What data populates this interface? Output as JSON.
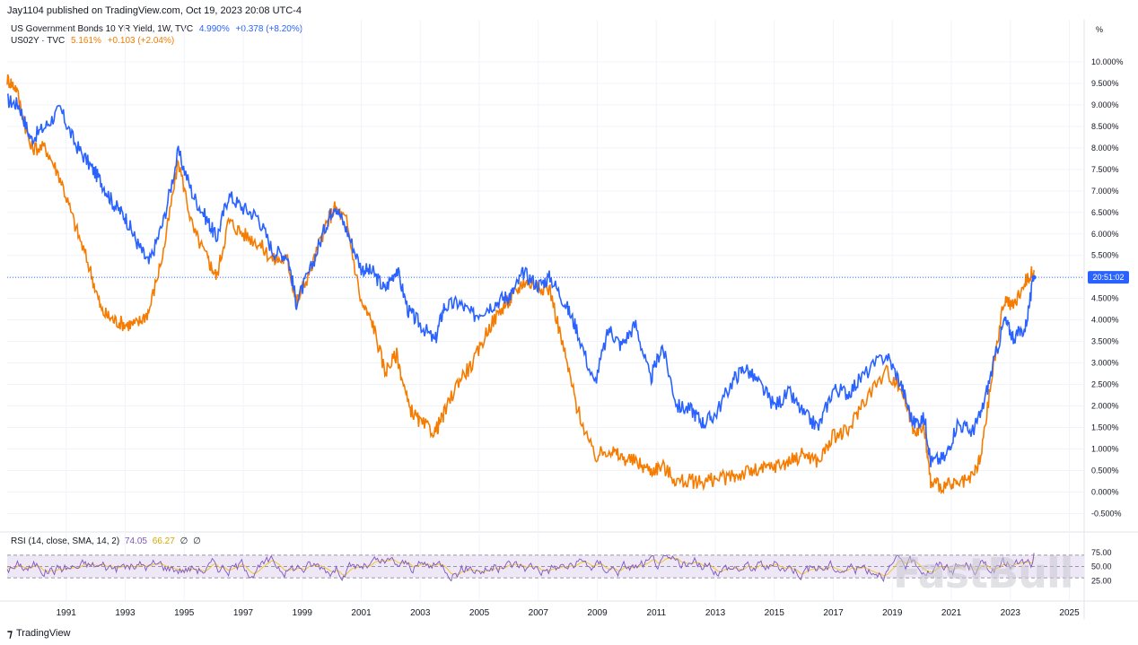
{
  "publisher": "Jay1104 published on TradingView.com, Oct 19, 2023 20:08 UTC-4",
  "unit": "%",
  "legend": [
    {
      "name": "US Government Bonds 10 YR Yield, 1W, TVC",
      "value": "4.990%",
      "change": "+0.378 (+8.20%)",
      "color": "#2962ff"
    },
    {
      "name": "US02Y · TVC",
      "value": "5.161%",
      "change": "+0.103 (+2.04%)",
      "color": "#f57c00"
    }
  ],
  "rsi_legend": {
    "label": "RSI (14, close, SMA, 14, 2)",
    "value": "74.05",
    "sma": "66.27",
    "extra1": "∅",
    "extra2": "∅"
  },
  "price_time_label": "20:51:02",
  "watermark": "FastBull",
  "footer": {
    "brand": "TradingView"
  },
  "colors": {
    "us10y": "#2962ff",
    "us02y": "#f57c00",
    "rsi": "#7e57c2",
    "rsi_ma": "#f5c518",
    "rsi_band": "#ede7f6"
  },
  "chart_data": {
    "type": "line",
    "title": "",
    "xlim": [
      1989.0,
      2025.5
    ],
    "x_ticks": [
      1991,
      1993,
      1995,
      1997,
      1999,
      2001,
      2003,
      2005,
      2007,
      2009,
      2011,
      2013,
      2015,
      2017,
      2019,
      2021,
      2023,
      2025
    ],
    "y_ticks": [
      "-0.500%",
      "0.000%",
      "0.500%",
      "1.000%",
      "1.500%",
      "2.000%",
      "2.500%",
      "3.000%",
      "3.500%",
      "4.000%",
      "4.500%",
      "5.000%",
      "5.500%",
      "6.000%",
      "6.500%",
      "7.000%",
      "7.500%",
      "8.000%",
      "8.500%",
      "9.000%",
      "9.500%",
      "10.000%"
    ],
    "ylim": [
      -0.7,
      10.5
    ],
    "series": [
      {
        "name": "US Government Bonds 10 YR Yield, 1W, TVC",
        "x": [
          1989.0,
          1989.4,
          1989.8,
          1990.3,
          1990.8,
          1991.3,
          1991.8,
          1992.2,
          1992.6,
          1993.0,
          1993.4,
          1993.8,
          1994.3,
          1994.8,
          1995.3,
          1995.8,
          1996.1,
          1996.5,
          1997.0,
          1997.5,
          1998.0,
          1998.5,
          1998.8,
          1999.3,
          1999.8,
          2000.1,
          2000.5,
          2001.0,
          2001.4,
          2001.8,
          2002.2,
          2002.6,
          2003.0,
          2003.5,
          2003.8,
          2004.3,
          2004.8,
          2005.3,
          2005.8,
          2006.1,
          2006.5,
          2007.0,
          2007.4,
          2007.9,
          2008.3,
          2008.9,
          2009.4,
          2009.8,
          2010.3,
          2010.8,
          2011.2,
          2011.7,
          2012.2,
          2012.6,
          2013.0,
          2013.6,
          2014.0,
          2014.5,
          2015.0,
          2015.5,
          2016.0,
          2016.5,
          2017.0,
          2017.5,
          2018.0,
          2018.8,
          2019.3,
          2019.7,
          2020.1,
          2020.3,
          2020.8,
          2021.2,
          2021.7,
          2022.0,
          2022.4,
          2022.8,
          2023.1,
          2023.5,
          2023.8
        ],
        "y": [
          9.1,
          9.0,
          8.2,
          8.5,
          8.9,
          8.1,
          7.6,
          7.2,
          6.7,
          6.4,
          5.8,
          5.3,
          6.3,
          7.9,
          6.9,
          6.3,
          5.9,
          6.9,
          6.6,
          6.4,
          5.6,
          5.5,
          4.4,
          5.2,
          6.2,
          6.7,
          6.1,
          5.2,
          5.1,
          4.7,
          5.2,
          4.2,
          3.9,
          3.5,
          4.3,
          4.4,
          4.1,
          4.3,
          4.5,
          4.6,
          5.1,
          4.8,
          5.0,
          4.4,
          3.8,
          2.5,
          3.8,
          3.4,
          3.9,
          2.6,
          3.4,
          2.0,
          1.9,
          1.6,
          1.8,
          2.6,
          2.9,
          2.5,
          2.0,
          2.3,
          1.8,
          1.5,
          2.4,
          2.3,
          2.7,
          3.2,
          2.5,
          1.6,
          1.7,
          0.7,
          0.8,
          1.6,
          1.4,
          1.8,
          2.9,
          4.0,
          3.6,
          3.8,
          4.99
        ]
      },
      {
        "name": "US02Y · TVC",
        "x": [
          1989.0,
          1989.3,
          1989.8,
          1990.3,
          1990.8,
          1991.3,
          1991.8,
          1992.2,
          1992.6,
          1993.0,
          1993.4,
          1993.8,
          1994.3,
          1994.8,
          1995.3,
          1995.8,
          1996.1,
          1996.5,
          1997.0,
          1997.5,
          1998.0,
          1998.5,
          1998.8,
          1999.3,
          1999.8,
          2000.1,
          2000.5,
          2001.0,
          2001.4,
          2001.8,
          2002.2,
          2002.6,
          2003.0,
          2003.5,
          2003.8,
          2004.3,
          2004.8,
          2005.3,
          2005.8,
          2006.1,
          2006.5,
          2007.0,
          2007.4,
          2007.9,
          2008.3,
          2008.9,
          2009.4,
          2009.8,
          2010.3,
          2010.8,
          2011.2,
          2011.7,
          2012.2,
          2012.6,
          2013.0,
          2013.6,
          2014.0,
          2014.5,
          2015.0,
          2015.5,
          2016.0,
          2016.5,
          2017.0,
          2017.5,
          2018.0,
          2018.8,
          2019.3,
          2019.7,
          2020.1,
          2020.3,
          2020.8,
          2021.2,
          2021.7,
          2022.0,
          2022.4,
          2022.8,
          2023.1,
          2023.5,
          2023.8
        ],
        "y": [
          9.6,
          9.4,
          8.0,
          8.0,
          7.3,
          6.2,
          5.2,
          4.2,
          4.0,
          3.9,
          3.9,
          4.2,
          5.6,
          7.7,
          6.1,
          5.4,
          5.0,
          6.3,
          6.0,
          5.8,
          5.4,
          5.4,
          4.4,
          5.2,
          6.2,
          6.6,
          6.3,
          4.4,
          3.9,
          2.8,
          3.2,
          2.0,
          1.6,
          1.4,
          1.8,
          2.6,
          3.0,
          3.8,
          4.3,
          4.5,
          4.9,
          4.8,
          4.7,
          3.2,
          2.0,
          0.8,
          1.0,
          0.8,
          0.7,
          0.5,
          0.6,
          0.25,
          0.25,
          0.25,
          0.3,
          0.35,
          0.45,
          0.5,
          0.6,
          0.7,
          0.9,
          0.7,
          1.3,
          1.4,
          2.1,
          2.8,
          2.4,
          1.5,
          1.4,
          0.2,
          0.15,
          0.15,
          0.3,
          0.8,
          2.8,
          4.5,
          4.3,
          4.9,
          5.16
        ]
      }
    ],
    "rsi": {
      "label": "RSI (14, close, SMA, 14, 2)",
      "ylim": [
        0,
        100
      ],
      "y_ticks": [
        "25.00",
        "50.00",
        "75.00"
      ],
      "upper_band": 70,
      "lower_band": 30,
      "last_value": 74.05,
      "last_ma": 66.27
    }
  }
}
